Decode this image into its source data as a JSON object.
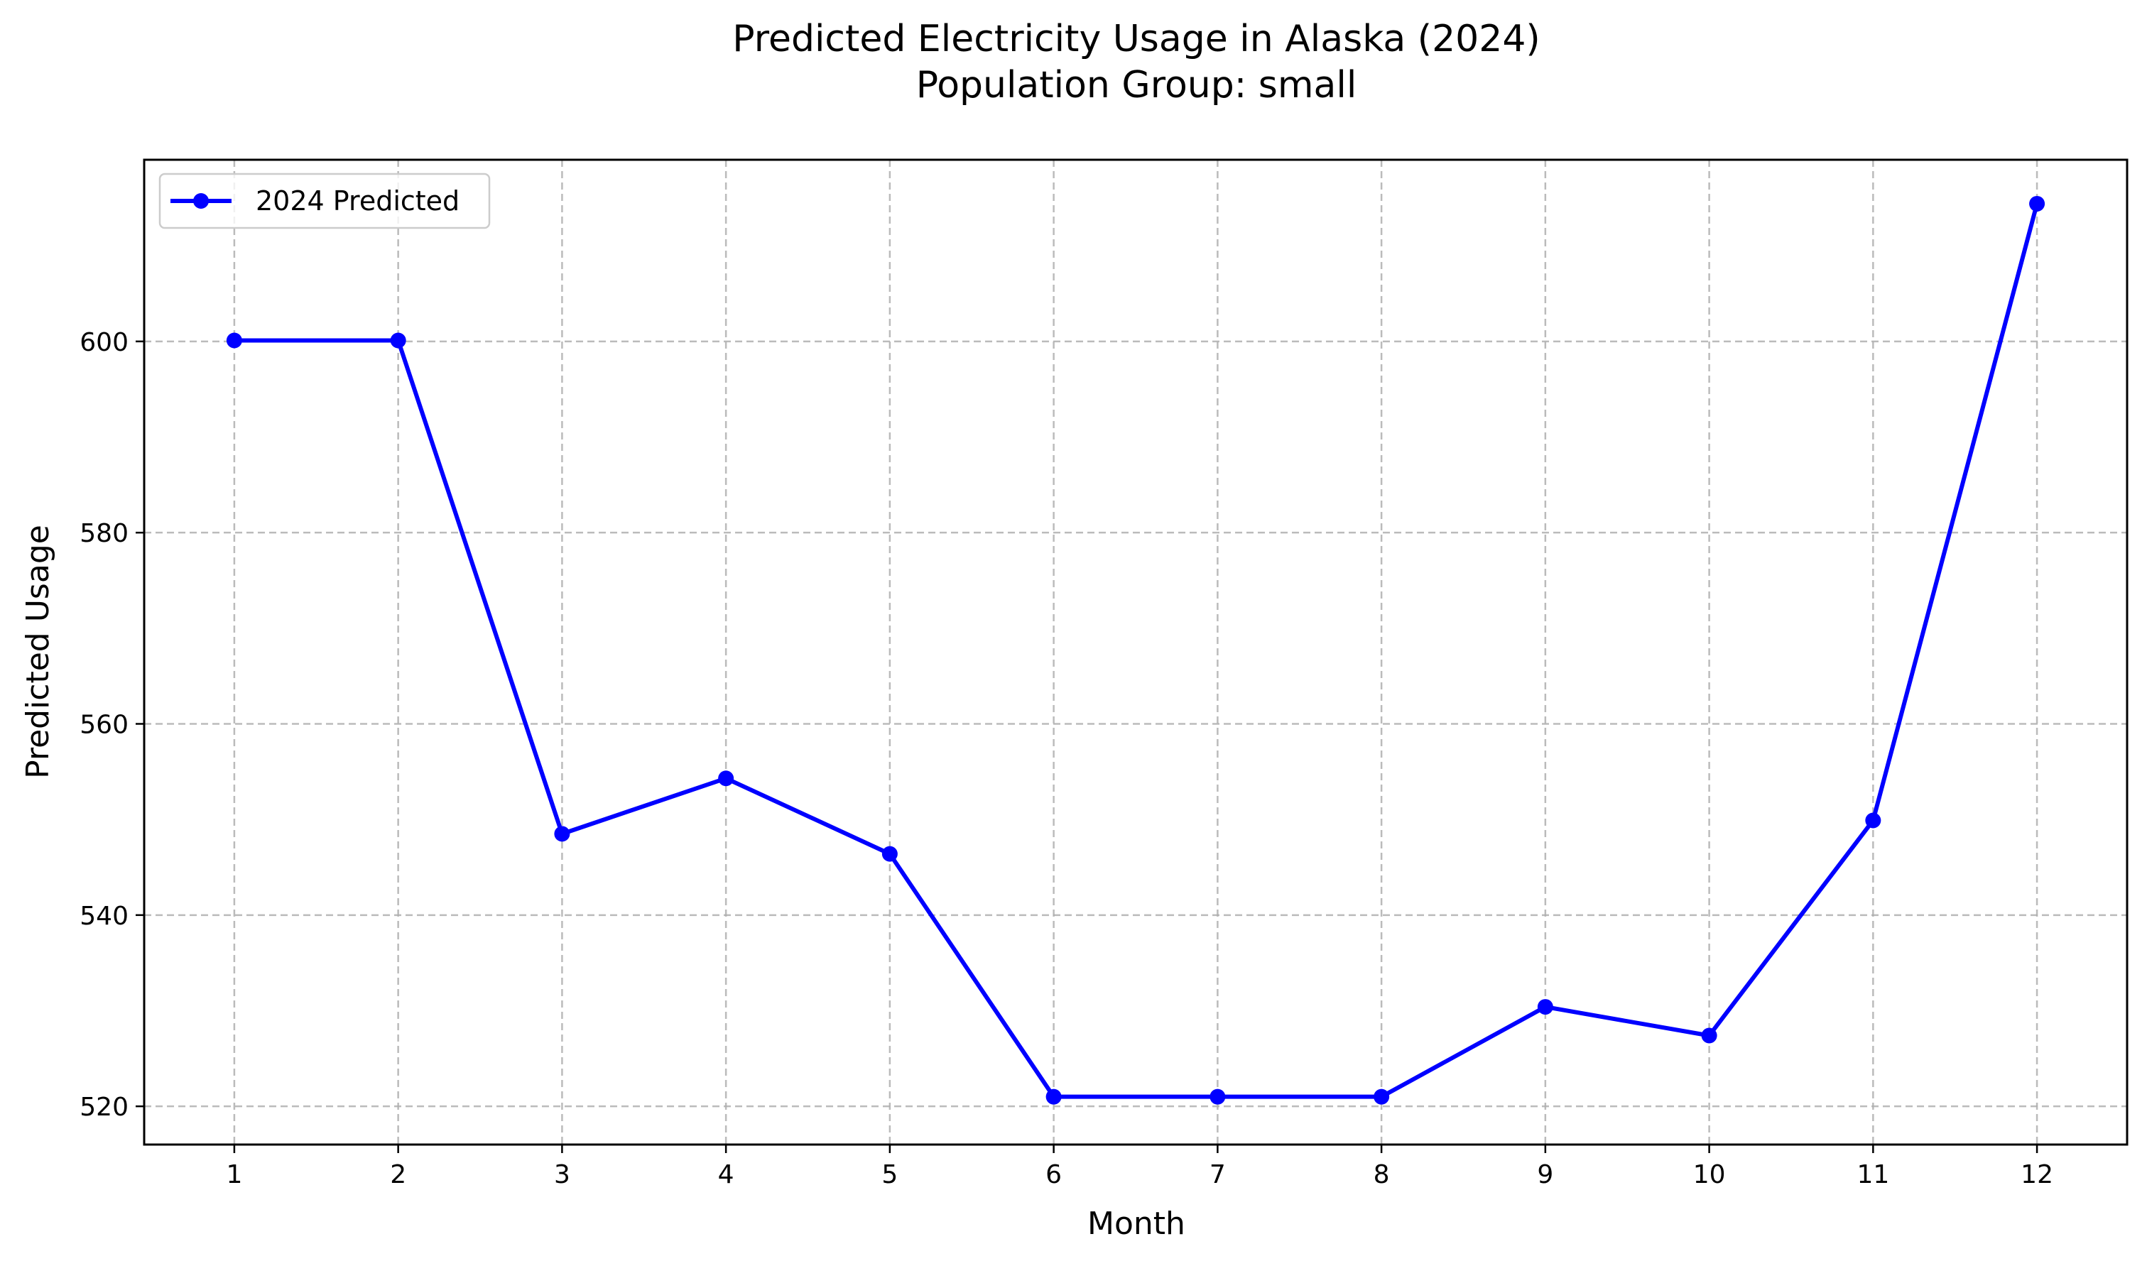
{
  "chart_data": {
    "type": "line",
    "title": "Predicted Electricity Usage in Alaska (2024)",
    "subtitle": "Population Group: small",
    "xlabel": "Month",
    "ylabel": "Predicted Usage",
    "x": [
      1,
      2,
      3,
      4,
      5,
      6,
      7,
      8,
      9,
      10,
      11,
      12
    ],
    "x_tick_labels": [
      "1",
      "2",
      "3",
      "4",
      "5",
      "6",
      "7",
      "8",
      "9",
      "10",
      "11",
      "12"
    ],
    "y_ticks": [
      520,
      540,
      560,
      580,
      600
    ],
    "y_tick_labels": [
      "520",
      "540",
      "560",
      "580",
      "600"
    ],
    "xlim": [
      0.45,
      12.55
    ],
    "ylim": [
      516,
      619
    ],
    "grid": true,
    "legend_position": "top-left",
    "series": [
      {
        "name": "2024 Predicted",
        "color": "#0000ff",
        "marker": "circle",
        "values": [
          600.1,
          600.1,
          548.5,
          554.3,
          546.4,
          521.0,
          521.0,
          521.0,
          530.4,
          527.4,
          549.9,
          614.4
        ]
      }
    ]
  }
}
